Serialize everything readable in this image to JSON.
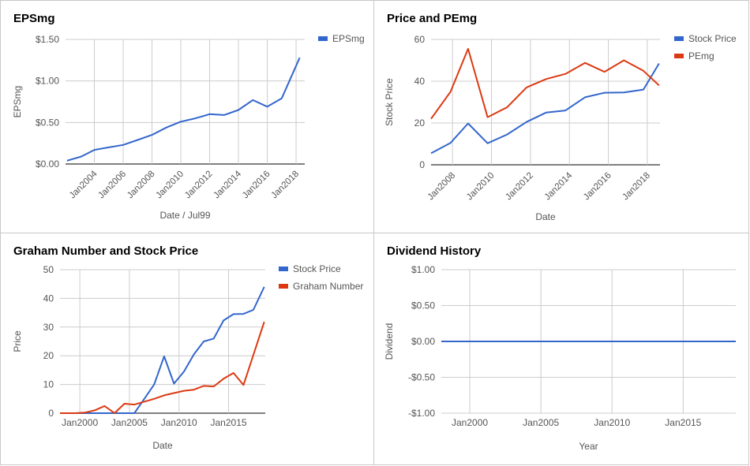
{
  "chart_data": [
    {
      "type": "line",
      "title": "EPSmg",
      "xlabel": "Date / Jul99",
      "ylabel": "EPSmg",
      "xlim": [
        2002.0,
        2018.6
      ],
      "ylim": [
        0,
        1.5
      ],
      "yticks": [
        0,
        0.5,
        1.0,
        1.5
      ],
      "yticklabels": [
        "$0.00",
        "$0.50",
        "$1.00",
        "$1.50"
      ],
      "xticks": [
        2004,
        2006,
        2008,
        2010,
        2012,
        2014,
        2016,
        2018
      ],
      "xticklabels": [
        "Jan2004",
        "Jan2006",
        "Jan2008",
        "Jan2010",
        "Jan2012",
        "Jan2014",
        "Jan2016",
        "Jan2018"
      ],
      "legend": "right",
      "series": [
        {
          "name": "EPSmg",
          "color": "#3366cc",
          "points": [
            [
              2002.1,
              0.04
            ],
            [
              2003.1,
              0.09
            ],
            [
              2004.0,
              0.17
            ],
            [
              2005.0,
              0.2
            ],
            [
              2006.0,
              0.23
            ],
            [
              2007.0,
              0.29
            ],
            [
              2008.0,
              0.35
            ],
            [
              2009.0,
              0.44
            ],
            [
              2010.0,
              0.51
            ],
            [
              2011.0,
              0.55
            ],
            [
              2012.0,
              0.6
            ],
            [
              2013.0,
              0.59
            ],
            [
              2014.0,
              0.65
            ],
            [
              2015.0,
              0.77
            ],
            [
              2016.0,
              0.69
            ],
            [
              2017.0,
              0.79
            ],
            [
              2018.25,
              1.28
            ]
          ]
        }
      ]
    },
    {
      "type": "line",
      "title": "Price and PEmg",
      "xlabel": "Date",
      "ylabel": "Stock Price",
      "xlim": [
        2006.9,
        2018.65
      ],
      "ylim": [
        0,
        60
      ],
      "yticks": [
        0,
        20,
        40,
        60
      ],
      "yticklabels": [
        "0",
        "20",
        "40",
        "60"
      ],
      "xticks": [
        2008,
        2010,
        2012,
        2014,
        2016,
        2018
      ],
      "xticklabels": [
        "Jan2008",
        "Jan2010",
        "Jan2012",
        "Jan2014",
        "Jan2016",
        "Jan2018"
      ],
      "legend": "right",
      "series": [
        {
          "name": "Stock Price",
          "color": "#3366cc",
          "points": [
            [
              2006.9,
              5.5
            ],
            [
              2007.9,
              10.5
            ],
            [
              2008.8,
              19.8
            ],
            [
              2009.8,
              10.3
            ],
            [
              2010.8,
              14.5
            ],
            [
              2011.8,
              20.5
            ],
            [
              2012.8,
              25
            ],
            [
              2013.8,
              26
            ],
            [
              2014.8,
              32.3
            ],
            [
              2015.8,
              34.5
            ],
            [
              2016.8,
              34.6
            ],
            [
              2017.8,
              36
            ],
            [
              2018.6,
              48.5
            ]
          ]
        },
        {
          "name": "PEmg",
          "color": "#dc3912",
          "points": [
            [
              2006.9,
              22
            ],
            [
              2007.9,
              35
            ],
            [
              2008.8,
              55.5
            ],
            [
              2009.8,
              22.8
            ],
            [
              2010.8,
              27.5
            ],
            [
              2011.8,
              37
            ],
            [
              2012.8,
              41
            ],
            [
              2013.8,
              43.5
            ],
            [
              2014.8,
              48.8
            ],
            [
              2015.8,
              44.5
            ],
            [
              2016.8,
              50
            ],
            [
              2017.8,
              45
            ],
            [
              2018.6,
              38
            ]
          ]
        }
      ]
    },
    {
      "type": "line",
      "title": "Graham Number and Stock Price",
      "xlabel": "Date",
      "ylabel": "Price",
      "xlim": [
        1998.0,
        2018.7
      ],
      "ylim": [
        0,
        50
      ],
      "yticks": [
        0,
        10,
        20,
        30,
        40,
        50
      ],
      "yticklabels": [
        "0",
        "10",
        "20",
        "30",
        "40",
        "50"
      ],
      "xticks": [
        2000,
        2005,
        2010,
        2015
      ],
      "xticklabels": [
        "Jan2000",
        "Jan2005",
        "Jan2010",
        "Jan2015"
      ],
      "legend": "right",
      "series": [
        {
          "name": "Stock Price",
          "color": "#3366cc",
          "points": [
            [
              1998.0,
              0
            ],
            [
              2005.5,
              0
            ],
            [
              2006.5,
              5
            ],
            [
              2007.5,
              10
            ],
            [
              2008.5,
              19.8
            ],
            [
              2009.5,
              10.3
            ],
            [
              2010.5,
              14.5
            ],
            [
              2011.5,
              20.5
            ],
            [
              2012.5,
              25
            ],
            [
              2013.5,
              26
            ],
            [
              2014.5,
              32.3
            ],
            [
              2015.5,
              34.5
            ],
            [
              2016.5,
              34.6
            ],
            [
              2017.5,
              36
            ],
            [
              2018.6,
              44
            ]
          ]
        },
        {
          "name": "Graham Number",
          "color": "#dc3912",
          "points": [
            [
              1998.0,
              0
            ],
            [
              1999.5,
              0
            ],
            [
              2000.5,
              0.2
            ],
            [
              2001.5,
              1
            ],
            [
              2002.5,
              2.5
            ],
            [
              2003.5,
              0
            ],
            [
              2004.5,
              3.3
            ],
            [
              2005.5,
              3
            ],
            [
              2006.5,
              4
            ],
            [
              2007.5,
              5
            ],
            [
              2008.5,
              6.2
            ],
            [
              2009.5,
              7
            ],
            [
              2010.5,
              7.8
            ],
            [
              2011.5,
              8.2
            ],
            [
              2012.5,
              9.5
            ],
            [
              2013.5,
              9.3
            ],
            [
              2014.5,
              12
            ],
            [
              2015.5,
              14
            ],
            [
              2016.5,
              9.8
            ],
            [
              2018.6,
              31.8
            ]
          ]
        }
      ]
    },
    {
      "type": "line",
      "title": "Dividend History",
      "xlabel": "Year",
      "ylabel": "Dividend",
      "xlim": [
        1998.0,
        2018.7
      ],
      "ylim": [
        -1.0,
        1.0
      ],
      "yticks": [
        -1.0,
        -0.5,
        0,
        0.5,
        1.0
      ],
      "yticklabels": [
        "-$1.00",
        "-$0.50",
        "$0.00",
        "$0.50",
        "$1.00"
      ],
      "xticks": [
        2000,
        2005,
        2010,
        2015
      ],
      "xticklabels": [
        "Jan2000",
        "Jan2005",
        "Jan2010",
        "Jan2015"
      ],
      "legend": "none",
      "series": [
        {
          "color": "#3366cc",
          "points": [
            [
              1998.0,
              0
            ],
            [
              2018.7,
              0
            ]
          ]
        }
      ]
    }
  ]
}
